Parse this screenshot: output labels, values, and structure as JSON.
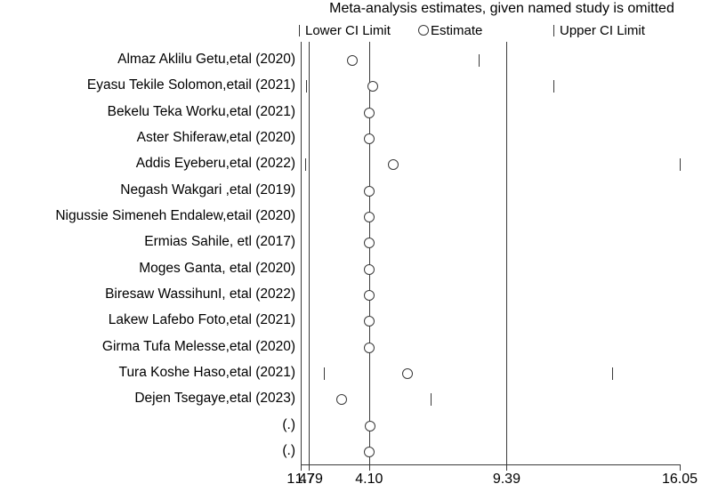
{
  "title": "Meta-analysis estimates, given named study is omitted",
  "legend": {
    "lower_label": "Lower CI Limit",
    "estimate_label": "Estimate",
    "upper_label": "Upper CI Limit"
  },
  "colors": {
    "background": "#ffffff",
    "line": "#3a3a3a",
    "marker_outline": "#3a3a3a",
    "text": "#000000"
  },
  "chart_data": {
    "type": "scatter",
    "title": "Meta-analysis estimates, given named study is omitted",
    "xlabel": "",
    "ylabel": "",
    "xlim": [
      1.47,
      16.05
    ],
    "grid": false,
    "legend_position": "top",
    "x_ticks": [
      1.47,
      1.79,
      4.1,
      9.39,
      16.05
    ],
    "x_tick_labels": [
      "1.47",
      "1.79",
      "4.10",
      "9.39",
      "16.05"
    ],
    "reference_lines": [
      1.47,
      1.79,
      4.1,
      9.39
    ],
    "overall": {
      "lower": 1.79,
      "estimate": 4.1,
      "upper": 9.39
    },
    "studies": [
      {
        "label": "Almaz Aklilu Getu,etal (2020)",
        "lower": 1.47,
        "estimate": 3.44,
        "upper": 8.31
      },
      {
        "label": "Eyasu Tekile Solomon,etail (2021)",
        "lower": 1.68,
        "estimate": 4.25,
        "upper": 11.19
      },
      {
        "label": "Bekelu Teka Worku,etal (2021)",
        "lower": 1.79,
        "estimate": 4.12,
        "upper": 9.39
      },
      {
        "label": "Aster Shiferaw,etal (2020)",
        "lower": 1.79,
        "estimate": 4.12,
        "upper": 9.39
      },
      {
        "label": "Addis Eyeberu,etal (2022)",
        "lower": 1.63,
        "estimate": 5.04,
        "upper": 16.05
      },
      {
        "label": "Negash Wakgari ,etal (2019)",
        "lower": 1.79,
        "estimate": 4.1,
        "upper": 9.39
      },
      {
        "label": "Nigussie Simeneh Endalew,etail (2020)",
        "lower": 1.79,
        "estimate": 4.1,
        "upper": 9.39
      },
      {
        "label": "Ermias Sahile, etl (2017)",
        "lower": 1.79,
        "estimate": 4.1,
        "upper": 9.39
      },
      {
        "label": "Moges Ganta, etal (2020)",
        "lower": 1.79,
        "estimate": 4.1,
        "upper": 9.39
      },
      {
        "label": "Biresaw WassihunI, etal (2022)",
        "lower": 1.79,
        "estimate": 4.12,
        "upper": 9.39
      },
      {
        "label": "Lakew Lafebo Foto,etal (2021)",
        "lower": 1.79,
        "estimate": 4.12,
        "upper": 9.39
      },
      {
        "label": "Girma Tufa Melesse,etal (2020)",
        "lower": 1.79,
        "estimate": 4.12,
        "upper": 9.39
      },
      {
        "label": "Tura Koshe Haso,etal (2021)",
        "lower": 2.36,
        "estimate": 5.56,
        "upper": 13.44
      },
      {
        "label": "Dejen Tsegaye,etal (2023)",
        "lower": 1.47,
        "estimate": 3.04,
        "upper": 6.47
      },
      {
        "label": "(.)",
        "lower": 1.79,
        "estimate": 4.13,
        "upper": 9.39
      },
      {
        "label": "(.)",
        "lower": 1.79,
        "estimate": 4.1,
        "upper": 9.39
      }
    ]
  }
}
